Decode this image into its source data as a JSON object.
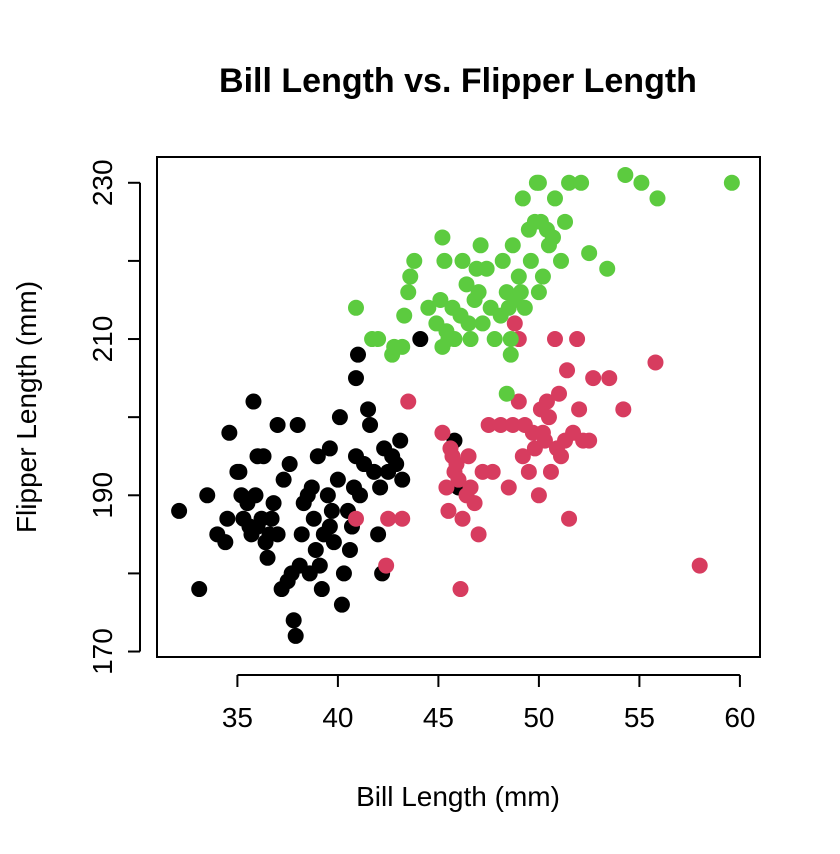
{
  "chart_data": {
    "type": "scatter",
    "title": "Bill Length vs. Flipper Length",
    "xlabel": "Bill Length (mm)",
    "ylabel": "Flipper Length (mm)",
    "xlim": [
      31,
      61
    ],
    "ylim": [
      169.3,
      233.3
    ],
    "x_ticks": [
      35,
      40,
      45,
      50,
      55,
      60
    ],
    "y_ticks": [
      170,
      190,
      210,
      230
    ],
    "y_minor_ticks": [
      180,
      200,
      220
    ],
    "grid": false,
    "legend": "none",
    "series": [
      {
        "color": "#000000",
        "points": [
          [
            32.1,
            188
          ],
          [
            33.1,
            178
          ],
          [
            33.5,
            190
          ],
          [
            34.0,
            185
          ],
          [
            34.4,
            184
          ],
          [
            34.5,
            187
          ],
          [
            34.6,
            198
          ],
          [
            35.0,
            193
          ],
          [
            35.1,
            193
          ],
          [
            35.2,
            190
          ],
          [
            35.3,
            187
          ],
          [
            35.5,
            189
          ],
          [
            35.6,
            186
          ],
          [
            35.7,
            185
          ],
          [
            35.9,
            190
          ],
          [
            36.0,
            195
          ],
          [
            36.0,
            186
          ],
          [
            36.2,
            187
          ],
          [
            36.4,
            184
          ],
          [
            36.5,
            182
          ],
          [
            36.6,
            185
          ],
          [
            36.7,
            187
          ],
          [
            36.8,
            189
          ],
          [
            37.0,
            185
          ],
          [
            37.2,
            178
          ],
          [
            37.3,
            192
          ],
          [
            37.5,
            179
          ],
          [
            37.6,
            194
          ],
          [
            37.7,
            180
          ],
          [
            37.8,
            174
          ],
          [
            37.9,
            172
          ],
          [
            38.1,
            181
          ],
          [
            38.2,
            185
          ],
          [
            38.3,
            189
          ],
          [
            38.5,
            190
          ],
          [
            38.6,
            180
          ],
          [
            38.7,
            191
          ],
          [
            38.8,
            187
          ],
          [
            38.9,
            183
          ],
          [
            39.0,
            195
          ],
          [
            39.1,
            181
          ],
          [
            39.2,
            178
          ],
          [
            39.3,
            185
          ],
          [
            39.5,
            190
          ],
          [
            39.6,
            186
          ],
          [
            39.7,
            188
          ],
          [
            39.8,
            184
          ],
          [
            40.0,
            192
          ],
          [
            40.2,
            176
          ],
          [
            40.3,
            180
          ],
          [
            40.5,
            188
          ],
          [
            40.6,
            183
          ],
          [
            40.7,
            186
          ],
          [
            40.8,
            191
          ],
          [
            40.9,
            195
          ],
          [
            41.0,
            208
          ],
          [
            41.1,
            190
          ],
          [
            41.3,
            194
          ],
          [
            41.5,
            201
          ],
          [
            41.6,
            199
          ],
          [
            41.8,
            193
          ],
          [
            42.0,
            185
          ],
          [
            42.1,
            191
          ],
          [
            42.2,
            180
          ],
          [
            42.3,
            196
          ],
          [
            42.5,
            193
          ],
          [
            42.7,
            195
          ],
          [
            42.9,
            194
          ],
          [
            43.1,
            197
          ],
          [
            43.2,
            192
          ],
          [
            44.1,
            210
          ],
          [
            45.8,
            197
          ],
          [
            46.0,
            191
          ],
          [
            35.8,
            202
          ],
          [
            36.3,
            195
          ],
          [
            37.0,
            199
          ],
          [
            38.0,
            199
          ],
          [
            39.6,
            196
          ],
          [
            40.1,
            200
          ],
          [
            40.9,
            205
          ]
        ]
      },
      {
        "color": "#d73c5f",
        "points": [
          [
            40.9,
            187
          ],
          [
            42.4,
            181
          ],
          [
            42.5,
            187
          ],
          [
            43.2,
            187
          ],
          [
            43.5,
            202
          ],
          [
            45.2,
            198
          ],
          [
            45.4,
            191
          ],
          [
            45.5,
            188
          ],
          [
            45.6,
            196
          ],
          [
            45.7,
            195
          ],
          [
            45.8,
            193
          ],
          [
            46.0,
            192
          ],
          [
            46.1,
            178
          ],
          [
            46.2,
            187
          ],
          [
            46.4,
            190
          ],
          [
            46.6,
            191
          ],
          [
            46.8,
            189
          ],
          [
            47.0,
            185
          ],
          [
            47.5,
            199
          ],
          [
            47.7,
            193
          ],
          [
            48.1,
            199
          ],
          [
            48.5,
            191
          ],
          [
            48.7,
            199
          ],
          [
            49.0,
            202
          ],
          [
            49.2,
            195
          ],
          [
            49.5,
            193
          ],
          [
            49.7,
            198
          ],
          [
            49.8,
            196
          ],
          [
            50.0,
            190
          ],
          [
            50.1,
            201
          ],
          [
            50.2,
            198
          ],
          [
            50.3,
            197
          ],
          [
            50.5,
            200
          ],
          [
            50.6,
            193
          ],
          [
            50.8,
            210
          ],
          [
            50.9,
            196
          ],
          [
            51.0,
            203
          ],
          [
            51.1,
            195
          ],
          [
            51.3,
            197
          ],
          [
            51.5,
            187
          ],
          [
            51.7,
            198
          ],
          [
            52.0,
            201
          ],
          [
            52.2,
            197
          ],
          [
            52.5,
            197
          ],
          [
            52.7,
            205
          ],
          [
            53.5,
            205
          ],
          [
            54.2,
            201
          ],
          [
            55.8,
            207
          ],
          [
            58.0,
            181
          ],
          [
            48.8,
            212
          ],
          [
            49.0,
            210
          ],
          [
            50.4,
            202
          ],
          [
            51.9,
            210
          ],
          [
            51.4,
            206
          ],
          [
            46.5,
            195
          ],
          [
            45.9,
            194
          ],
          [
            47.2,
            193
          ],
          [
            49.3,
            199
          ]
        ]
      },
      {
        "color": "#5ccb3f",
        "points": [
          [
            40.9,
            214
          ],
          [
            41.7,
            210
          ],
          [
            42.0,
            210
          ],
          [
            42.7,
            208
          ],
          [
            42.8,
            209
          ],
          [
            43.2,
            209
          ],
          [
            43.3,
            213
          ],
          [
            43.5,
            216
          ],
          [
            43.6,
            218
          ],
          [
            43.8,
            220
          ],
          [
            44.5,
            214
          ],
          [
            44.9,
            212
          ],
          [
            45.1,
            215
          ],
          [
            45.2,
            209
          ],
          [
            45.3,
            220
          ],
          [
            45.4,
            211
          ],
          [
            45.5,
            210
          ],
          [
            45.7,
            214
          ],
          [
            45.8,
            210
          ],
          [
            46.1,
            213
          ],
          [
            46.2,
            220
          ],
          [
            46.4,
            217
          ],
          [
            46.5,
            212
          ],
          [
            46.6,
            210
          ],
          [
            46.8,
            215
          ],
          [
            47.0,
            216
          ],
          [
            47.2,
            212
          ],
          [
            47.4,
            219
          ],
          [
            47.6,
            214
          ],
          [
            47.8,
            210
          ],
          [
            48.1,
            213
          ],
          [
            48.2,
            220
          ],
          [
            48.4,
            216
          ],
          [
            48.5,
            214
          ],
          [
            48.6,
            210
          ],
          [
            48.7,
            222
          ],
          [
            48.8,
            215
          ],
          [
            49.0,
            218
          ],
          [
            49.1,
            216
          ],
          [
            49.3,
            214
          ],
          [
            49.5,
            224
          ],
          [
            49.6,
            220
          ],
          [
            49.8,
            225
          ],
          [
            50.0,
            216
          ],
          [
            50.1,
            225
          ],
          [
            50.2,
            218
          ],
          [
            50.4,
            224
          ],
          [
            50.5,
            222
          ],
          [
            50.7,
            223
          ],
          [
            50.8,
            228
          ],
          [
            51.1,
            220
          ],
          [
            51.3,
            225
          ],
          [
            51.5,
            230
          ],
          [
            52.1,
            230
          ],
          [
            52.5,
            221
          ],
          [
            53.4,
            219
          ],
          [
            54.3,
            231
          ],
          [
            55.1,
            230
          ],
          [
            55.9,
            228
          ],
          [
            59.6,
            230
          ],
          [
            48.4,
            203
          ],
          [
            49.9,
            230
          ],
          [
            50.0,
            230
          ],
          [
            49.2,
            228
          ],
          [
            45.2,
            223
          ],
          [
            47.1,
            222
          ],
          [
            46.9,
            219
          ],
          [
            48.6,
            208
          ]
        ]
      }
    ]
  }
}
